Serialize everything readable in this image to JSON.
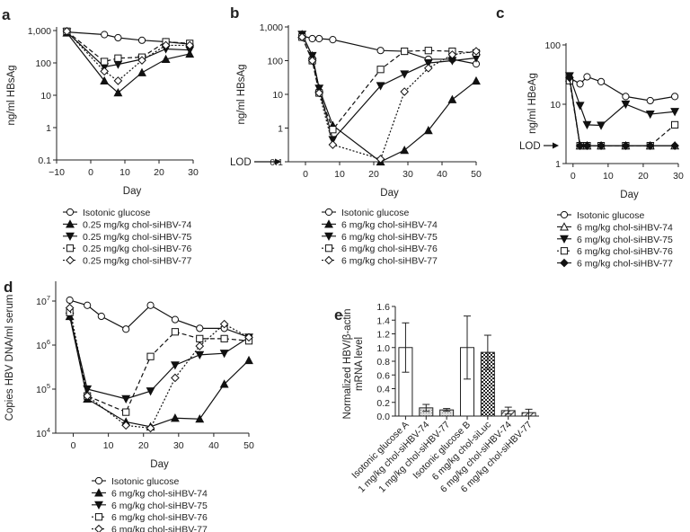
{
  "chart_data": [
    {
      "panel": "a",
      "type": "line",
      "yscale": "log",
      "xlabel": "Day",
      "ylabel": "ng/ml HBsAg",
      "xlim": [
        -10,
        30
      ],
      "ylim": [
        0.1,
        1000
      ],
      "xticks": [
        {
          "v": -10,
          "label": "−10"
        },
        {
          "v": 0,
          "label": "0"
        },
        {
          "v": 10,
          "label": "10"
        },
        {
          "v": 20,
          "label": "20"
        },
        {
          "v": 30,
          "label": "30"
        }
      ],
      "yticks": [
        {
          "v": 0.1,
          "label": "0.1"
        },
        {
          "v": 1,
          "label": "1"
        },
        {
          "v": 10,
          "label": "10"
        },
        {
          "v": 100,
          "label": "100"
        },
        {
          "v": 1000,
          "label": "1,000"
        }
      ],
      "series": [
        {
          "name": "Isotonic glucose",
          "marker": "circle-open",
          "dash": "solid",
          "x": [
            -7,
            4,
            8,
            15,
            22,
            29
          ],
          "y": [
            900,
            750,
            600,
            500,
            450,
            380
          ]
        },
        {
          "name": "0.25 mg/kg chol-siHBV-74",
          "marker": "triangle-up-filled",
          "dash": "solid",
          "x": [
            -7,
            4,
            8,
            15,
            22,
            29
          ],
          "y": [
            850,
            28,
            12,
            50,
            130,
            190
          ]
        },
        {
          "name": "0.25 mg/kg chol-siHBV-75",
          "marker": "triangle-down-filled",
          "dash": "solid",
          "x": [
            -7,
            4,
            8,
            15,
            22,
            29
          ],
          "y": [
            900,
            75,
            90,
            130,
            270,
            250
          ]
        },
        {
          "name": "0.25 mg/kg chol-siHBV-76",
          "marker": "square-open",
          "dash": "dashed",
          "x": [
            -7,
            4,
            8,
            15,
            22,
            29
          ],
          "y": [
            950,
            110,
            140,
            150,
            450,
            400
          ]
        },
        {
          "name": "0.25 mg/kg chol-siHBV-77",
          "marker": "diamond-open",
          "dash": "dotted",
          "x": [
            -7,
            4,
            8,
            15,
            22,
            29
          ],
          "y": [
            950,
            55,
            28,
            120,
            350,
            350
          ]
        }
      ]
    },
    {
      "panel": "b",
      "type": "line",
      "yscale": "log",
      "xlabel": "Day",
      "ylabel": "ng/ml HBsAg",
      "annotation": "LOD",
      "xlim": [
        -5,
        50
      ],
      "ylim": [
        0.1,
        1000
      ],
      "xticks": [
        {
          "v": 0,
          "label": "0"
        },
        {
          "v": 10,
          "label": "10"
        },
        {
          "v": 20,
          "label": "20"
        },
        {
          "v": 30,
          "label": "30"
        },
        {
          "v": 40,
          "label": "40"
        },
        {
          "v": 50,
          "label": "50"
        }
      ],
      "yticks": [
        {
          "v": 0.1,
          "label": "0.1"
        },
        {
          "v": 1,
          "label": "1"
        },
        {
          "v": 10,
          "label": "10"
        },
        {
          "v": 100,
          "label": "100"
        },
        {
          "v": 1000,
          "label": "1,000"
        }
      ],
      "series": [
        {
          "name": "Isotonic glucose",
          "marker": "circle-open",
          "dash": "solid",
          "x": [
            -1,
            2,
            4,
            8,
            22,
            29,
            36,
            43,
            50
          ],
          "y": [
            550,
            450,
            450,
            420,
            200,
            190,
            110,
            110,
            80
          ]
        },
        {
          "name": "6 mg/kg chol-siHBV-74",
          "marker": "triangle-up-filled",
          "dash": "solid",
          "x": [
            -1,
            2,
            4,
            8,
            22,
            29,
            36,
            43,
            50
          ],
          "y": [
            600,
            140,
            15,
            1.2,
            0.1,
            0.22,
            0.85,
            7,
            25
          ]
        },
        {
          "name": "6 mg/kg chol-siHBV-75",
          "marker": "triangle-down-filled",
          "dash": "solid",
          "x": [
            -1,
            2,
            4,
            8,
            22,
            29,
            36,
            43,
            50
          ],
          "y": [
            600,
            140,
            15,
            0.45,
            18,
            40,
            85,
            100,
            120
          ]
        },
        {
          "name": "6 mg/kg chol-siHBV-76",
          "marker": "square-open",
          "dash": "dashed",
          "x": [
            -1,
            2,
            4,
            8,
            22,
            29,
            36,
            43,
            50
          ],
          "y": [
            500,
            100,
            11,
            0.9,
            55,
            190,
            200,
            190,
            170
          ]
        },
        {
          "name": "6 mg/kg chol-siHBV-77",
          "marker": "diamond-open",
          "dash": "dotted",
          "x": [
            -1,
            2,
            4,
            8,
            22,
            29,
            36,
            43,
            50
          ],
          "y": [
            500,
            100,
            11,
            0.32,
            0.12,
            12,
            60,
            150,
            190
          ]
        }
      ]
    },
    {
      "panel": "c",
      "type": "line",
      "yscale": "log",
      "xlabel": "Day",
      "ylabel": "ng/ml HBeAg",
      "annotation": "LOD",
      "xlim": [
        -2,
        30
      ],
      "ylim": [
        1,
        100
      ],
      "xticks": [
        {
          "v": 0,
          "label": "0"
        },
        {
          "v": 10,
          "label": "10"
        },
        {
          "v": 20,
          "label": "20"
        },
        {
          "v": 30,
          "label": "30"
        }
      ],
      "yticks": [
        {
          "v": 1,
          "label": "1"
        },
        {
          "v": 10,
          "label": "10"
        },
        {
          "v": 100,
          "label": "100"
        }
      ],
      "series": [
        {
          "name": "Isotonic glucose",
          "marker": "circle-open",
          "dash": "solid",
          "x": [
            -1,
            2,
            4,
            8,
            15,
            22,
            29
          ],
          "y": [
            28,
            22,
            29,
            24,
            13.5,
            11.5,
            13.5
          ]
        },
        {
          "name": "6 mg/kg chol-siHBV-74",
          "marker": "triangle-up-open",
          "dash": "solid",
          "x": [
            -1,
            2,
            4,
            8,
            15,
            22,
            29
          ],
          "y": [
            28,
            2,
            2,
            2,
            2,
            2,
            2
          ]
        },
        {
          "name": "6 mg/kg chol-siHBV-75",
          "marker": "triangle-down-filled",
          "dash": "solid",
          "x": [
            -1,
            2,
            4,
            8,
            15,
            22,
            29
          ],
          "y": [
            30,
            9.5,
            4.5,
            4.4,
            10,
            6.8,
            7.5
          ]
        },
        {
          "name": "6 mg/kg chol-siHBV-76",
          "marker": "square-open",
          "dash": "dashed",
          "x": [
            -1,
            2,
            4,
            8,
            15,
            22,
            29
          ],
          "y": [
            25,
            2,
            2,
            2,
            2,
            2,
            4.5
          ]
        },
        {
          "name": "6 mg/kg chol-siHBV-77",
          "marker": "diamond-filled",
          "dash": "solid",
          "x": [
            -1,
            2,
            4,
            8,
            15,
            22,
            29
          ],
          "y": [
            28,
            2,
            2,
            2,
            2,
            2,
            2
          ]
        }
      ]
    },
    {
      "panel": "d",
      "type": "line",
      "yscale": "log",
      "xlabel": "Day",
      "ylabel": "Copies HBV DNA/ml serum",
      "xlim": [
        -5,
        50
      ],
      "ylim": [
        10000,
        10000000
      ],
      "xticks": [
        {
          "v": 0,
          "label": "0"
        },
        {
          "v": 10,
          "label": "10"
        },
        {
          "v": 20,
          "label": "20"
        },
        {
          "v": 30,
          "label": "30"
        },
        {
          "v": 40,
          "label": "40"
        },
        {
          "v": 50,
          "label": "50"
        }
      ],
      "yticks": [
        {
          "v": 10000,
          "label": "10",
          "sup": "4"
        },
        {
          "v": 100000,
          "label": "10",
          "sup": "5"
        },
        {
          "v": 1000000,
          "label": "10",
          "sup": "6"
        },
        {
          "v": 10000000,
          "label": "10",
          "sup": "7"
        }
      ],
      "series": [
        {
          "name": "Isotonic glucose",
          "marker": "circle-open",
          "dash": "solid",
          "x": [
            -1,
            4,
            8,
            15,
            22,
            29,
            36,
            43,
            50
          ],
          "y": [
            10500000,
            8000000,
            4500000,
            2300000,
            8000000,
            3800000,
            2400000,
            2400000,
            1500000
          ]
        },
        {
          "name": "6 mg/kg chol-siHBV-74",
          "marker": "triangle-up-filled",
          "dash": "solid",
          "x": [
            -1,
            4,
            15,
            22,
            29,
            36,
            43,
            50
          ],
          "y": [
            4500000,
            60000,
            18000,
            14000,
            22000,
            21000,
            130000,
            450000
          ]
        },
        {
          "name": "6 mg/kg chol-siHBV-75",
          "marker": "triangle-down-filled",
          "dash": "solid",
          "x": [
            -1,
            4,
            15,
            22,
            29,
            36,
            43,
            50
          ],
          "y": [
            4500000,
            100000,
            60000,
            90000,
            350000,
            600000,
            650000,
            1500000
          ]
        },
        {
          "name": "6 mg/kg chol-siHBV-76",
          "marker": "square-open",
          "dash": "dashed",
          "x": [
            -1,
            4,
            15,
            22,
            29,
            36,
            43,
            50
          ],
          "y": [
            5500000,
            70000,
            30000,
            550000,
            2000000,
            1400000,
            1400000,
            1250000
          ]
        },
        {
          "name": "6 mg/kg chol-siHBV-77",
          "marker": "diamond-open",
          "dash": "dotted",
          "x": [
            -1,
            4,
            15,
            22,
            29,
            36,
            43,
            50
          ],
          "y": [
            7000000,
            70000,
            15000,
            13000,
            180000,
            950000,
            3000000,
            1500000
          ]
        }
      ]
    },
    {
      "panel": "e",
      "type": "bar",
      "ylabel": [
        "Normalized HBV/β-actin",
        "mRNA level"
      ],
      "ylim": [
        0,
        1.6
      ],
      "yticks": [
        {
          "v": 0,
          "label": "0.0"
        },
        {
          "v": 0.2,
          "label": "0.2"
        },
        {
          "v": 0.4,
          "label": "0.4"
        },
        {
          "v": 0.6,
          "label": "0.6"
        },
        {
          "v": 0.8,
          "label": "0.8"
        },
        {
          "v": 1.0,
          "label": "1.0"
        },
        {
          "v": 1.2,
          "label": "1.2"
        },
        {
          "v": 1.4,
          "label": "1.4"
        },
        {
          "v": 1.6,
          "label": "1.6"
        }
      ],
      "categories": [
        "Isotonic glucose A",
        "1 mg/kg chol-siHBV-74",
        "1 mg/kg chol-siHBV-77",
        "Isotonic glucose B",
        "6 mg/kg chol-siLuc",
        "6 mg/kg chol-siHBV-74",
        "6 mg/kg chol-siHBV-77"
      ],
      "values": [
        1.0,
        0.12,
        0.09,
        1.0,
        0.93,
        0.08,
        0.05
      ],
      "errors": [
        0.36,
        0.05,
        0.02,
        0.46,
        0.25,
        0.05,
        0.05
      ],
      "fills": [
        "white",
        "dots",
        "dots",
        "white",
        "checker",
        "hatch",
        "hatch"
      ]
    }
  ]
}
